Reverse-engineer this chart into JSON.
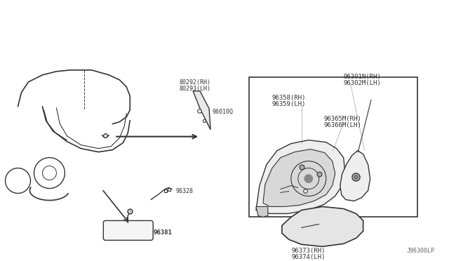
{
  "title": "",
  "bg_color": "#ffffff",
  "line_color": "#333333",
  "text_color": "#333333",
  "fig_width": 6.4,
  "fig_height": 3.72,
  "dpi": 100,
  "watermark": "J96300LP",
  "labels": {
    "lbl1": "80292(RH)",
    "lbl2": "80293(LH)",
    "lbl3": "96010Q",
    "lbl4": "96301N(RH)",
    "lbl5": "96302M(LH)",
    "lbl6": "96358(RH)",
    "lbl7": "96359(LH)",
    "lbl8": "96365M(RH)",
    "lbl9": "96366M(LH)",
    "lbl10": "96373(RH)",
    "lbl11": "96374(LH)",
    "lbl12": "96328",
    "lbl13": "96381"
  }
}
